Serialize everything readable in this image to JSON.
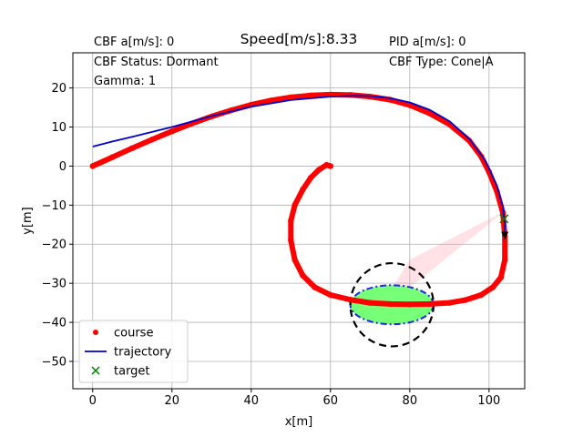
{
  "chart_data": {
    "type": "line",
    "title": "Speed[m/s]:8.33",
    "xlabel": "x[m]",
    "ylabel": "y[m]",
    "xlim": [
      -5,
      109
    ],
    "ylim": [
      -57,
      29
    ],
    "xticks": [
      0,
      20,
      40,
      60,
      80,
      100
    ],
    "yticks": [
      -50,
      -40,
      -30,
      -20,
      -10,
      0,
      10,
      20
    ],
    "grid": true,
    "legend_position": "lower-left",
    "annotations": {
      "cbf_accel": "CBF a[m/s]: 0",
      "cbf_status": "CBF Status: Dormant",
      "gamma": "Gamma: 1",
      "pid_accel": "PID a[m/s]: 0",
      "cbf_type": "CBF Type: Cone|A"
    },
    "series": [
      {
        "name": "course",
        "color": "#ff0000",
        "marker": "dot",
        "x": [
          0,
          5,
          10,
          15,
          20,
          25,
          30,
          35,
          40,
          45,
          50,
          55,
          60,
          65,
          70,
          75,
          80,
          85,
          90,
          95,
          98,
          100,
          102,
          103.5,
          104,
          104,
          103,
          101,
          98,
          94,
          90,
          85,
          80,
          75,
          70,
          65,
          60,
          56,
          53,
          51,
          50,
          50,
          51,
          53,
          55,
          57,
          59,
          60
        ],
        "y": [
          0,
          2.3,
          4.6,
          6.8,
          8.9,
          10.9,
          12.7,
          14.3,
          15.7,
          16.8,
          17.6,
          18.1,
          18.3,
          18.2,
          17.8,
          17,
          15.6,
          13.5,
          10.7,
          6.5,
          2.5,
          -1.5,
          -6.5,
          -12,
          -18,
          -24,
          -28.5,
          -31,
          -33,
          -34.3,
          -35,
          -35.3,
          -35.4,
          -35.3,
          -35,
          -34.2,
          -33,
          -31,
          -28,
          -24,
          -19,
          -14,
          -10,
          -6,
          -3,
          -1,
          0.3,
          0
        ]
      },
      {
        "name": "trajectory",
        "color": "#0000cc",
        "marker": "line",
        "x": [
          0,
          5,
          10,
          20,
          30,
          40,
          50,
          60,
          66,
          70,
          75,
          80,
          85,
          90,
          95,
          99,
          102,
          103.5,
          104,
          104
        ],
        "y": [
          5,
          6.3,
          7.5,
          10,
          12.8,
          15.2,
          16.9,
          17.8,
          18,
          17.9,
          17.4,
          16.3,
          14.4,
          11.5,
          7,
          1.5,
          -5,
          -10.5,
          -15,
          -18.2
        ]
      },
      {
        "name": "target",
        "color": "#008000",
        "marker": "x",
        "x": [
          103.8
        ],
        "y": [
          -13.5
        ]
      }
    ],
    "obstacle": {
      "center": [
        75.5,
        -35.5
      ],
      "ellipse_radii": [
        10.5,
        5
      ],
      "safety_radius": 10.5,
      "fill": "#77ff77",
      "edge": "#2222ee"
    },
    "cone": {
      "apex": [
        104,
        -11.5
      ],
      "color": "#ffc8d2",
      "edges": [
        [
          80,
          -24
        ],
        [
          71,
          -38.5
        ]
      ]
    }
  }
}
